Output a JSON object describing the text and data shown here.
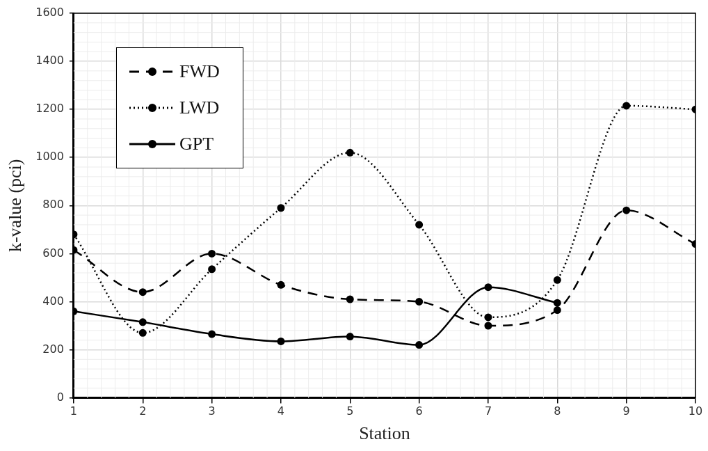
{
  "chart_data": {
    "type": "line",
    "xlabel": "Station",
    "ylabel": "k-value (pci)",
    "x": [
      1,
      2,
      3,
      4,
      5,
      6,
      7,
      8,
      9,
      10
    ],
    "xlim": [
      1,
      10
    ],
    "xticks": [
      1,
      2,
      3,
      4,
      5,
      6,
      7,
      8,
      9,
      10
    ],
    "ylim": [
      0,
      1600
    ],
    "yticks": [
      0,
      200,
      400,
      600,
      800,
      1000,
      1200,
      1400,
      1600
    ],
    "grid": true,
    "legend": "top left",
    "marker": "circle",
    "series": [
      {
        "name": "FWD",
        "color": "#000000",
        "line_style": "dashed",
        "values": [
          615,
          440,
          600,
          470,
          410,
          400,
          300,
          365,
          780,
          640
        ]
      },
      {
        "name": "LWD",
        "color": "#000000",
        "line_style": "dotted",
        "values": [
          680,
          270,
          535,
          790,
          1020,
          720,
          335,
          490,
          1215,
          1200
        ]
      },
      {
        "name": "GPT",
        "color": "#000000",
        "line_style": "solid",
        "values": [
          360,
          315,
          265,
          235,
          255,
          220,
          460,
          395,
          null,
          null
        ]
      }
    ]
  }
}
